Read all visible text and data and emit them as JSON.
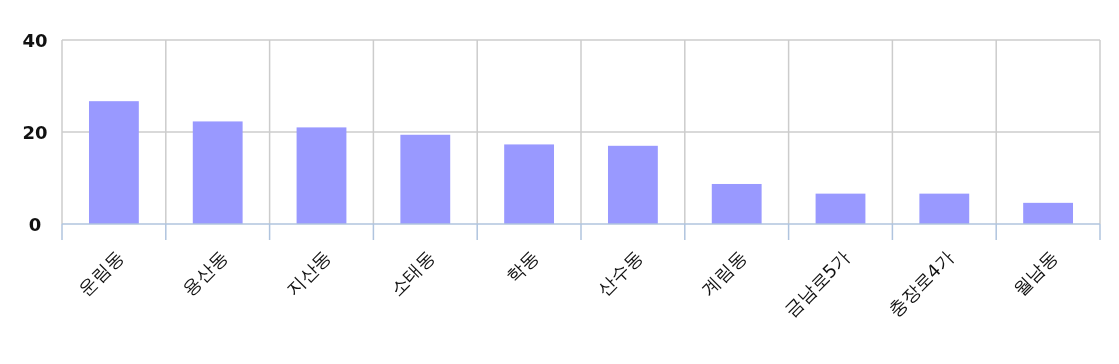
{
  "chart_data": {
    "type": "bar",
    "categories": [
      "운림동",
      "용산동",
      "지산동",
      "소태동",
      "학동",
      "산수동",
      "계림동",
      "금남로5가",
      "충장로4가",
      "월남동"
    ],
    "values": [
      26.7,
      22.3,
      21.0,
      19.4,
      17.3,
      17.0,
      8.7,
      6.6,
      6.6,
      4.6
    ],
    "color": "#9999ff",
    "ylim": [
      0,
      40
    ],
    "yticks": [
      0,
      20,
      40
    ],
    "grid": true
  }
}
